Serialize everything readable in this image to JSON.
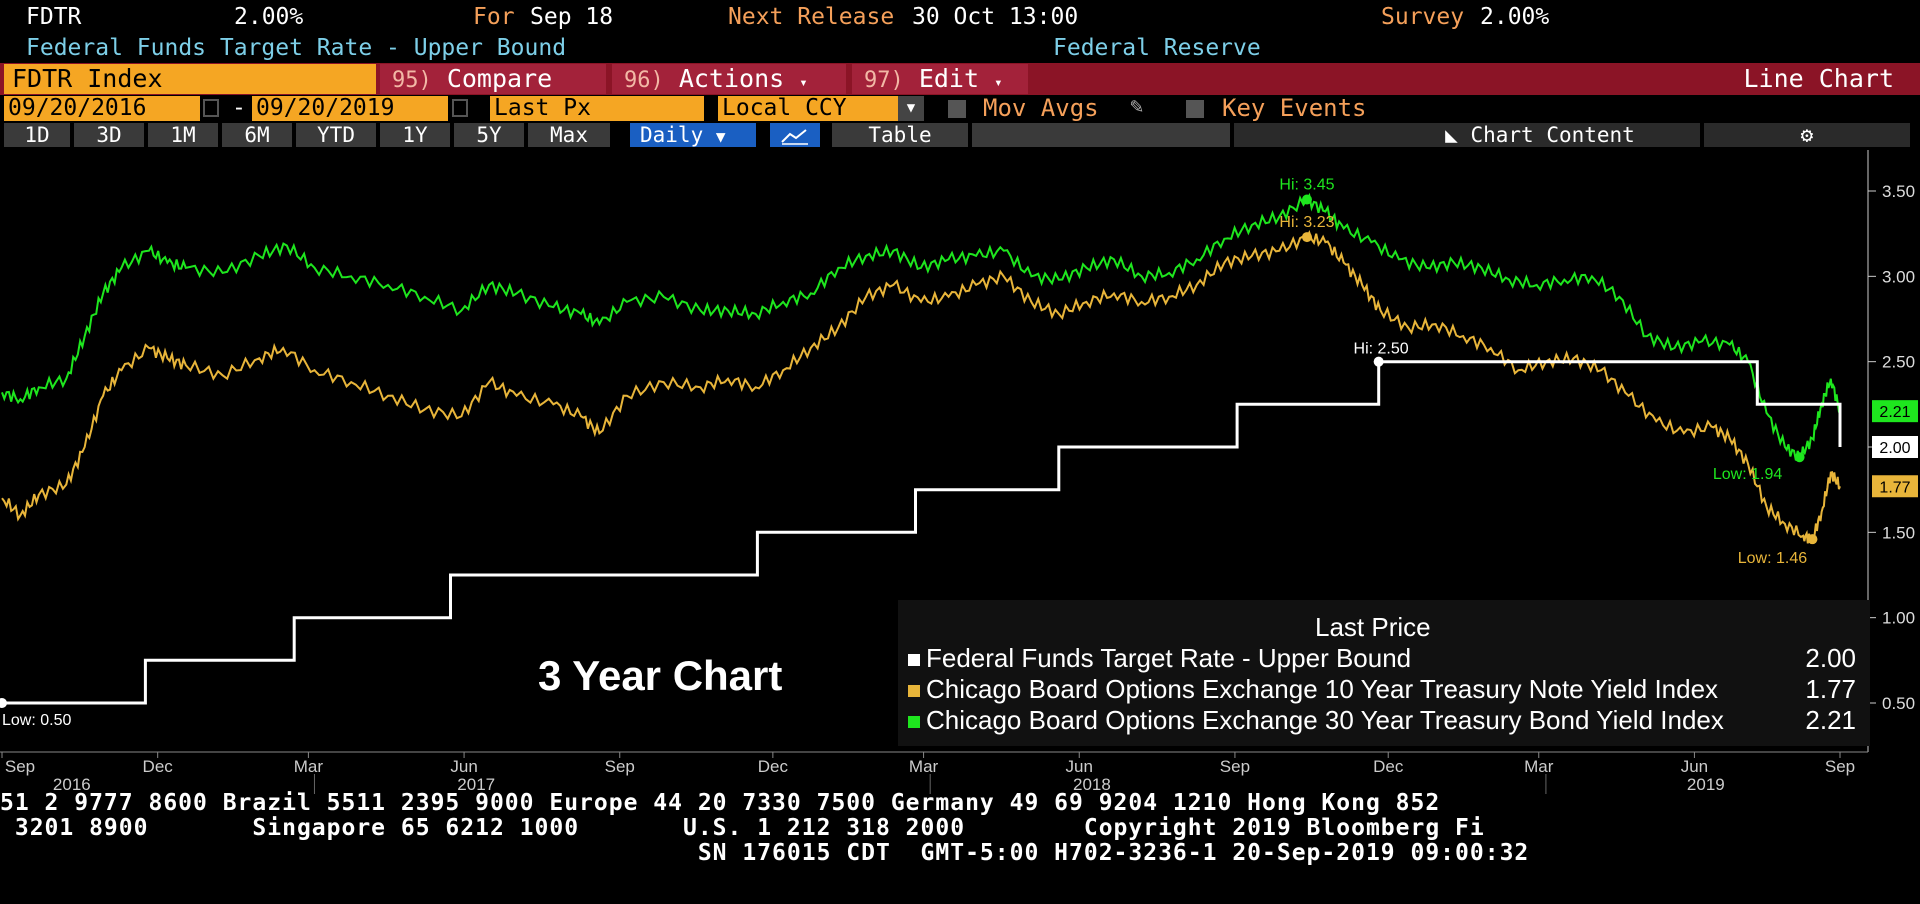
{
  "header": {
    "ticker": "FDTR",
    "value": "2.00%",
    "for_label": "For",
    "for_date": "Sep 18",
    "next_release_label": "Next Release",
    "next_release_value": "30 Oct 13:00",
    "survey_label": "Survey",
    "survey_value": "2.00%",
    "description": "Federal Funds Target Rate - Upper Bound",
    "source": "Federal Reserve"
  },
  "toolbar": {
    "security": "FDTR Index",
    "compare_num": "95)",
    "compare_label": "Compare",
    "actions_num": "96)",
    "actions_label": "Actions",
    "edit_num": "97)",
    "edit_label": "Edit",
    "chart_type": "Line Chart"
  },
  "params": {
    "start_date": "09/20/2016",
    "dash": "-",
    "end_date": "09/20/2019",
    "price_field": "Last Px",
    "currency": "Local CCY",
    "mov_avgs": "Mov Avgs",
    "key_events": "Key Events"
  },
  "ranges": {
    "items": [
      "1D",
      "3D",
      "1M",
      "6M",
      "YTD",
      "1Y",
      "5Y",
      "Max"
    ],
    "frequency": "Daily",
    "table": "Table",
    "collapse": "«",
    "chart_content": "Chart Content"
  },
  "colors": {
    "fed": "#ffffff",
    "ten_year": "#e8b53a",
    "thirty_year": "#1ee61e",
    "toolbar_red": "#8b1426",
    "orange": "#f5a623"
  },
  "chart_data": {
    "type": "line",
    "title": "3 Year Chart",
    "ylim": [
      0.2,
      3.65
    ],
    "yticks": [
      "3.50",
      "3.00",
      "2.50",
      "2.00",
      "1.50",
      "1.00",
      "0.50"
    ],
    "ytick_values": [
      3.5,
      3.0,
      2.5,
      2.0,
      1.5,
      1.0,
      0.5
    ],
    "month_ticks": [
      {
        "label": "Sep",
        "t": 0.0
      },
      {
        "label": "Dec",
        "t": 0.0847
      },
      {
        "label": "Mar",
        "t": 0.1667
      },
      {
        "label": "Jun",
        "t": 0.2514
      },
      {
        "label": "Sep",
        "t": 0.3361
      },
      {
        "label": "Dec",
        "t": 0.4194
      },
      {
        "label": "Mar",
        "t": 0.5014
      },
      {
        "label": "Jun",
        "t": 0.5861
      },
      {
        "label": "Sep",
        "t": 0.6708
      },
      {
        "label": "Dec",
        "t": 0.7542
      },
      {
        "label": "Mar",
        "t": 0.8361
      },
      {
        "label": "Jun",
        "t": 0.9208
      },
      {
        "label": "Sep",
        "t": 1.0
      }
    ],
    "year_labels": [
      {
        "label": "2016",
        "t": 0.038
      },
      {
        "label": "2017",
        "t": 0.258
      },
      {
        "label": "2018",
        "t": 0.593
      },
      {
        "label": "2019",
        "t": 0.927
      }
    ],
    "legend_title": "Last Price",
    "series": [
      {
        "name": "Federal Funds Target Rate - Upper Bound",
        "last": "2.00",
        "kind": "step",
        "points": [
          [
            0.0,
            0.5
          ],
          [
            0.078,
            0.5
          ],
          [
            0.078,
            0.75
          ],
          [
            0.159,
            0.75
          ],
          [
            0.159,
            1.0
          ],
          [
            0.244,
            1.0
          ],
          [
            0.244,
            1.25
          ],
          [
            0.411,
            1.25
          ],
          [
            0.411,
            1.5
          ],
          [
            0.497,
            1.5
          ],
          [
            0.497,
            1.75
          ],
          [
            0.575,
            1.75
          ],
          [
            0.575,
            2.0
          ],
          [
            0.672,
            2.0
          ],
          [
            0.672,
            2.25
          ],
          [
            0.749,
            2.25
          ],
          [
            0.749,
            2.5
          ],
          [
            0.955,
            2.5
          ],
          [
            0.955,
            2.25
          ],
          [
            1.0,
            2.25
          ],
          [
            1.0,
            2.0
          ]
        ],
        "annotations": [
          {
            "label": "Low: 0.50",
            "t": 0.0,
            "v": 0.5
          },
          {
            "label": "Hi: 2.50",
            "t": 0.749,
            "v": 2.5
          }
        ]
      },
      {
        "name": "Chicago Board Options Exchange 10 Year Treasury Note Yield Index",
        "last": "1.77",
        "kind": "line",
        "points": [
          [
            0.0,
            1.7
          ],
          [
            0.01,
            1.6
          ],
          [
            0.02,
            1.72
          ],
          [
            0.035,
            1.78
          ],
          [
            0.045,
            2.0
          ],
          [
            0.055,
            2.3
          ],
          [
            0.065,
            2.45
          ],
          [
            0.08,
            2.58
          ],
          [
            0.09,
            2.52
          ],
          [
            0.1,
            2.48
          ],
          [
            0.12,
            2.42
          ],
          [
            0.14,
            2.52
          ],
          [
            0.153,
            2.58
          ],
          [
            0.17,
            2.45
          ],
          [
            0.19,
            2.38
          ],
          [
            0.21,
            2.3
          ],
          [
            0.23,
            2.22
          ],
          [
            0.25,
            2.18
          ],
          [
            0.265,
            2.38
          ],
          [
            0.28,
            2.3
          ],
          [
            0.3,
            2.25
          ],
          [
            0.315,
            2.18
          ],
          [
            0.325,
            2.08
          ],
          [
            0.34,
            2.3
          ],
          [
            0.36,
            2.38
          ],
          [
            0.38,
            2.35
          ],
          [
            0.395,
            2.4
          ],
          [
            0.41,
            2.35
          ],
          [
            0.425,
            2.45
          ],
          [
            0.44,
            2.58
          ],
          [
            0.455,
            2.7
          ],
          [
            0.47,
            2.88
          ],
          [
            0.485,
            2.95
          ],
          [
            0.5,
            2.85
          ],
          [
            0.515,
            2.88
          ],
          [
            0.53,
            2.95
          ],
          [
            0.545,
            3.0
          ],
          [
            0.56,
            2.85
          ],
          [
            0.575,
            2.78
          ],
          [
            0.59,
            2.85
          ],
          [
            0.605,
            2.9
          ],
          [
            0.62,
            2.85
          ],
          [
            0.635,
            2.88
          ],
          [
            0.65,
            2.95
          ],
          [
            0.665,
            3.08
          ],
          [
            0.68,
            3.12
          ],
          [
            0.695,
            3.15
          ],
          [
            0.71,
            3.23
          ],
          [
            0.72,
            3.2
          ],
          [
            0.73,
            3.08
          ],
          [
            0.74,
            2.95
          ],
          [
            0.75,
            2.8
          ],
          [
            0.765,
            2.7
          ],
          [
            0.78,
            2.72
          ],
          [
            0.795,
            2.65
          ],
          [
            0.81,
            2.58
          ],
          [
            0.825,
            2.45
          ],
          [
            0.84,
            2.5
          ],
          [
            0.855,
            2.52
          ],
          [
            0.87,
            2.45
          ],
          [
            0.885,
            2.3
          ],
          [
            0.9,
            2.15
          ],
          [
            0.915,
            2.08
          ],
          [
            0.93,
            2.12
          ],
          [
            0.94,
            2.05
          ],
          [
            0.95,
            1.9
          ],
          [
            0.96,
            1.65
          ],
          [
            0.97,
            1.55
          ],
          [
            0.98,
            1.48
          ],
          [
            0.985,
            1.46
          ],
          [
            0.99,
            1.62
          ],
          [
            0.995,
            1.85
          ],
          [
            1.0,
            1.77
          ]
        ],
        "annotations": [
          {
            "label": "Hi: 3.23",
            "t": 0.71,
            "v": 3.23
          },
          {
            "label": "Low: 1.46",
            "t": 0.985,
            "v": 1.46
          }
        ]
      },
      {
        "name": "Chicago Board Options Exchange 30 Year Treasury Bond Yield Index",
        "last": "2.21",
        "kind": "line",
        "points": [
          [
            0.0,
            2.32
          ],
          [
            0.01,
            2.28
          ],
          [
            0.02,
            2.35
          ],
          [
            0.035,
            2.4
          ],
          [
            0.045,
            2.65
          ],
          [
            0.055,
            2.9
          ],
          [
            0.065,
            3.05
          ],
          [
            0.08,
            3.15
          ],
          [
            0.09,
            3.08
          ],
          [
            0.1,
            3.05
          ],
          [
            0.12,
            3.02
          ],
          [
            0.14,
            3.12
          ],
          [
            0.155,
            3.18
          ],
          [
            0.17,
            3.05
          ],
          [
            0.19,
            3.0
          ],
          [
            0.21,
            2.95
          ],
          [
            0.23,
            2.88
          ],
          [
            0.25,
            2.8
          ],
          [
            0.265,
            2.95
          ],
          [
            0.28,
            2.9
          ],
          [
            0.3,
            2.82
          ],
          [
            0.315,
            2.78
          ],
          [
            0.325,
            2.72
          ],
          [
            0.34,
            2.85
          ],
          [
            0.36,
            2.88
          ],
          [
            0.38,
            2.8
          ],
          [
            0.395,
            2.8
          ],
          [
            0.41,
            2.78
          ],
          [
            0.425,
            2.85
          ],
          [
            0.44,
            2.9
          ],
          [
            0.455,
            3.05
          ],
          [
            0.47,
            3.12
          ],
          [
            0.485,
            3.15
          ],
          [
            0.5,
            3.05
          ],
          [
            0.515,
            3.1
          ],
          [
            0.53,
            3.12
          ],
          [
            0.545,
            3.15
          ],
          [
            0.56,
            3.0
          ],
          [
            0.575,
            2.98
          ],
          [
            0.59,
            3.05
          ],
          [
            0.605,
            3.1
          ],
          [
            0.62,
            3.0
          ],
          [
            0.635,
            3.02
          ],
          [
            0.65,
            3.1
          ],
          [
            0.665,
            3.22
          ],
          [
            0.68,
            3.3
          ],
          [
            0.695,
            3.35
          ],
          [
            0.71,
            3.45
          ],
          [
            0.72,
            3.38
          ],
          [
            0.73,
            3.28
          ],
          [
            0.745,
            3.2
          ],
          [
            0.76,
            3.1
          ],
          [
            0.775,
            3.05
          ],
          [
            0.79,
            3.08
          ],
          [
            0.805,
            3.05
          ],
          [
            0.82,
            2.98
          ],
          [
            0.835,
            2.95
          ],
          [
            0.85,
            2.98
          ],
          [
            0.865,
            3.0
          ],
          [
            0.88,
            2.88
          ],
          [
            0.895,
            2.65
          ],
          [
            0.91,
            2.58
          ],
          [
            0.925,
            2.62
          ],
          [
            0.94,
            2.6
          ],
          [
            0.95,
            2.5
          ],
          [
            0.96,
            2.2
          ],
          [
            0.97,
            2.0
          ],
          [
            0.978,
            1.94
          ],
          [
            0.985,
            2.05
          ],
          [
            0.99,
            2.25
          ],
          [
            0.995,
            2.4
          ],
          [
            1.0,
            2.21
          ]
        ],
        "annotations": [
          {
            "label": "Hi: 3.45",
            "t": 0.71,
            "v": 3.45
          },
          {
            "label": "Low: 1.94",
            "t": 0.978,
            "v": 1.94
          }
        ]
      }
    ]
  },
  "footer": {
    "line1": "51 2 9777 8600 Brazil 5511 2395 9000 Europe 44 20 7330 7500 Germany 49 69 9204 1210 Hong Kong 852",
    "line2": " 3201 8900       Singapore 65 6212 1000       U.S. 1 212 318 2000        Copyright 2019 Bloomberg Fi",
    "line3": "                                               SN 176015 CDT  GMT-5:00 H702-3236-1 20-Sep-2019 09:00:32"
  }
}
